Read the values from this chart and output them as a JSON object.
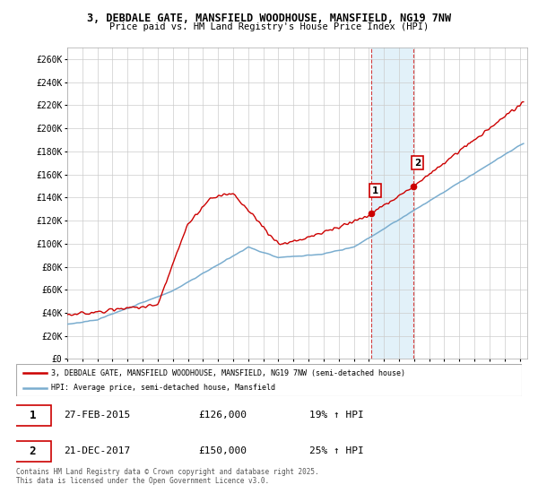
{
  "title1": "3, DEBDALE GATE, MANSFIELD WOODHOUSE, MANSFIELD, NG19 7NW",
  "title2": "Price paid vs. HM Land Registry's House Price Index (HPI)",
  "ylim": [
    0,
    270000
  ],
  "yticks": [
    0,
    20000,
    40000,
    60000,
    80000,
    100000,
    120000,
    140000,
    160000,
    180000,
    200000,
    220000,
    240000,
    260000
  ],
  "xlim_start": 1995.0,
  "xlim_end": 2025.5,
  "line1_color": "#cc0000",
  "line2_color": "#7aadcf",
  "shaded_color": "#d0e8f5",
  "grid_color": "#cccccc",
  "bg_color": "#ffffff",
  "sale1_date": 2015.16,
  "sale1_price": 126000,
  "sale2_date": 2017.97,
  "sale2_price": 150000,
  "legend_line1": "3, DEBDALE GATE, MANSFIELD WOODHOUSE, MANSFIELD, NG19 7NW (semi-detached house)",
  "legend_line2": "HPI: Average price, semi-detached house, Mansfield",
  "table_row1": [
    "1",
    "27-FEB-2015",
    "£126,000",
    "19% ↑ HPI"
  ],
  "table_row2": [
    "2",
    "21-DEC-2017",
    "£150,000",
    "25% ↑ HPI"
  ],
  "footer": "Contains HM Land Registry data © Crown copyright and database right 2025.\nThis data is licensed under the Open Government Licence v3.0."
}
